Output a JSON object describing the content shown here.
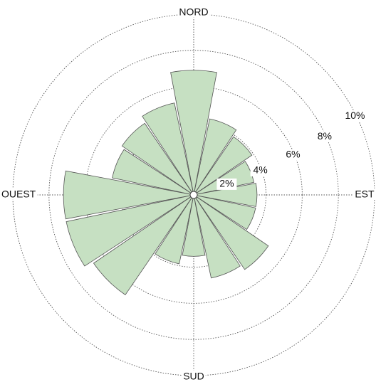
{
  "chart_data": {
    "type": "rose",
    "categories": [
      "NORD",
      null,
      null,
      null,
      "EST",
      null,
      null,
      null,
      "SUD",
      null,
      null,
      null,
      "OUEST",
      null,
      null,
      null
    ],
    "values": [
      6.9,
      4.3,
      3.9,
      3.4,
      3.5,
      3.5,
      5.0,
      4.7,
      3.4,
      3.9,
      6.7,
      7.2,
      7.2,
      4.6,
      4.8,
      5.2
    ],
    "color": "#c6e0c2",
    "rlim": [
      0,
      10
    ],
    "rticks": [
      {
        "value": 2,
        "label": "2%"
      },
      {
        "value": 4,
        "label": "4%"
      },
      {
        "value": 6,
        "label": "6%"
      },
      {
        "value": 8,
        "label": "8%"
      },
      {
        "value": 10,
        "label": "10%"
      }
    ],
    "grid": true
  }
}
